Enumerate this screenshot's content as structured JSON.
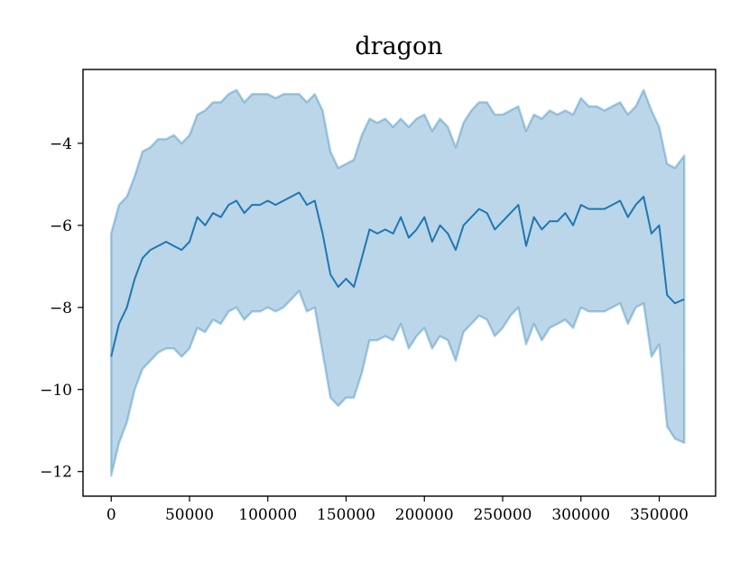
{
  "chart_data": {
    "type": "line",
    "title": "dragon",
    "xlabel": "",
    "ylabel": "",
    "xlim": [
      -18000,
      386000
    ],
    "ylim": [
      -12.6,
      -2.2
    ],
    "xticks": [
      0,
      50000,
      100000,
      150000,
      200000,
      250000,
      300000,
      350000
    ],
    "yticks": [
      -4,
      -6,
      -8,
      -10,
      -12
    ],
    "xtick_labels": [
      "0",
      "50000",
      "100000",
      "150000",
      "200000",
      "250000",
      "300000",
      "350000"
    ],
    "ytick_labels": [
      "−4",
      "−6",
      "−8",
      "−10",
      "−12"
    ],
    "grid": false,
    "series": [
      {
        "line_color": "#1f77b4",
        "band_color": "#1f77b4",
        "x": [
          0,
          5000,
          10000,
          15000,
          20000,
          25000,
          30000,
          35000,
          40000,
          45000,
          50000,
          55000,
          60000,
          65000,
          70000,
          75000,
          80000,
          85000,
          90000,
          95000,
          100000,
          105000,
          110000,
          115000,
          120000,
          125000,
          130000,
          135000,
          140000,
          145000,
          150000,
          155000,
          160000,
          165000,
          170000,
          175000,
          180000,
          185000,
          190000,
          195000,
          200000,
          205000,
          210000,
          215000,
          220000,
          225000,
          230000,
          235000,
          240000,
          245000,
          250000,
          255000,
          260000,
          265000,
          270000,
          275000,
          280000,
          285000,
          290000,
          295000,
          300000,
          305000,
          310000,
          315000,
          320000,
          325000,
          330000,
          335000,
          340000,
          345000,
          350000,
          355000,
          360000,
          366000
        ],
        "mean": [
          -9.2,
          -8.4,
          -8.0,
          -7.3,
          -6.8,
          -6.6,
          -6.5,
          -6.4,
          -6.5,
          -6.6,
          -6.4,
          -5.8,
          -6.0,
          -5.7,
          -5.8,
          -5.5,
          -5.4,
          -5.7,
          -5.5,
          -5.5,
          -5.4,
          -5.5,
          -5.4,
          -5.3,
          -5.2,
          -5.5,
          -5.4,
          -6.2,
          -7.2,
          -7.5,
          -7.3,
          -7.5,
          -6.8,
          -6.1,
          -6.2,
          -6.1,
          -6.2,
          -5.8,
          -6.3,
          -6.1,
          -5.8,
          -6.4,
          -6.0,
          -6.2,
          -6.6,
          -6.0,
          -5.8,
          -5.6,
          -5.7,
          -6.1,
          -5.9,
          -5.7,
          -5.5,
          -6.5,
          -5.8,
          -6.1,
          -5.9,
          -5.9,
          -5.7,
          -6.0,
          -5.5,
          -5.6,
          -5.6,
          -5.6,
          -5.5,
          -5.4,
          -5.8,
          -5.5,
          -5.3,
          -6.2,
          -6.0,
          -7.7,
          -7.9,
          -7.8
        ],
        "upper": [
          -6.2,
          -5.5,
          -5.3,
          -4.8,
          -4.2,
          -4.1,
          -3.9,
          -3.9,
          -3.8,
          -4.0,
          -3.8,
          -3.3,
          -3.2,
          -3.0,
          -3.0,
          -2.8,
          -2.7,
          -3.0,
          -2.8,
          -2.8,
          -2.8,
          -2.9,
          -2.8,
          -2.8,
          -2.8,
          -3.0,
          -2.8,
          -3.2,
          -4.2,
          -4.6,
          -4.5,
          -4.4,
          -3.8,
          -3.4,
          -3.5,
          -3.4,
          -3.6,
          -3.4,
          -3.6,
          -3.4,
          -3.3,
          -3.7,
          -3.4,
          -3.6,
          -4.1,
          -3.5,
          -3.2,
          -3.0,
          -3.0,
          -3.3,
          -3.3,
          -3.2,
          -3.1,
          -3.7,
          -3.3,
          -3.4,
          -3.2,
          -3.3,
          -3.2,
          -3.3,
          -2.9,
          -3.1,
          -3.1,
          -3.2,
          -3.1,
          -3.0,
          -3.3,
          -3.1,
          -2.7,
          -3.2,
          -3.6,
          -4.5,
          -4.6,
          -4.3
        ],
        "lower": [
          -12.1,
          -11.3,
          -10.8,
          -10.0,
          -9.5,
          -9.3,
          -9.1,
          -9.0,
          -9.0,
          -9.2,
          -9.0,
          -8.5,
          -8.6,
          -8.3,
          -8.4,
          -8.1,
          -8.0,
          -8.3,
          -8.1,
          -8.1,
          -8.0,
          -8.1,
          -8.0,
          -7.8,
          -7.6,
          -8.1,
          -8.0,
          -9.1,
          -10.2,
          -10.4,
          -10.2,
          -10.2,
          -9.6,
          -8.8,
          -8.8,
          -8.7,
          -8.8,
          -8.4,
          -9.0,
          -8.7,
          -8.5,
          -9.0,
          -8.7,
          -8.8,
          -9.3,
          -8.6,
          -8.4,
          -8.2,
          -8.3,
          -8.7,
          -8.5,
          -8.2,
          -8.0,
          -8.9,
          -8.4,
          -8.8,
          -8.5,
          -8.4,
          -8.3,
          -8.5,
          -8.0,
          -8.1,
          -8.1,
          -8.1,
          -8.0,
          -7.9,
          -8.4,
          -8.0,
          -7.9,
          -9.2,
          -8.9,
          -10.9,
          -11.2,
          -11.3
        ]
      }
    ]
  }
}
